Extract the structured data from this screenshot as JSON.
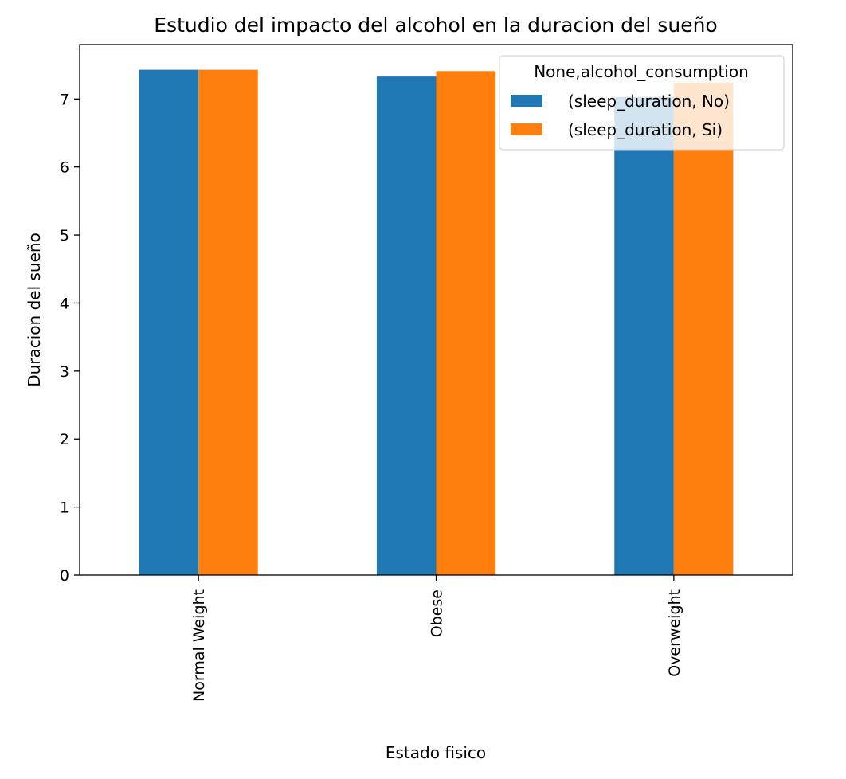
{
  "chart_data": {
    "type": "bar",
    "title": "Estudio del impacto del alcohol en la duracion del sueño",
    "xlabel": "Estado fisico",
    "ylabel": "Duracion del sueño",
    "categories": [
      "Normal Weight",
      "Obese",
      "Overweight"
    ],
    "series": [
      {
        "name": "(sleep_duration, No)",
        "values": [
          7.43,
          7.33,
          7.03
        ],
        "color": "#1f77b4"
      },
      {
        "name": "(sleep_duration, Si)",
        "values": [
          7.43,
          7.41,
          7.24
        ],
        "color": "#ff7f0e"
      }
    ],
    "ylim": [
      0,
      7.8
    ],
    "yticks": [
      0,
      1,
      2,
      3,
      4,
      5,
      6,
      7
    ],
    "legend": {
      "title": "None,alcohol_consumption",
      "placement": "upper right"
    },
    "grid": false
  }
}
